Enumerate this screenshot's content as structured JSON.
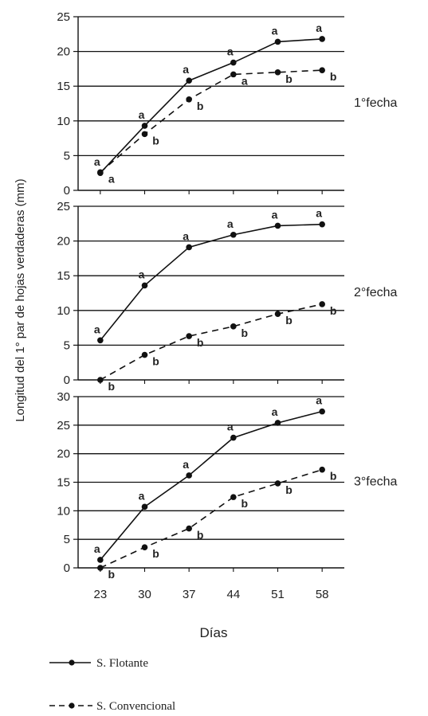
{
  "chart_data": {
    "type": "line",
    "ylabel": "Longitud del 1° par de hojas verdaderas (mm)",
    "xlabel": "Días",
    "x": [
      23,
      30,
      37,
      44,
      51,
      58
    ],
    "legend": {
      "placement": "bottom-left",
      "entries": [
        "S. Flotante",
        "S. Convencional"
      ]
    },
    "panels": [
      {
        "label": "1°fecha",
        "ylim": [
          0,
          25
        ],
        "yticks": [
          0,
          5,
          10,
          15,
          20,
          25
        ],
        "grid": true,
        "series": [
          {
            "name": "S. Flotante",
            "style": "solid",
            "values": [
              2.5,
              9.3,
              15.8,
              18.4,
              21.4,
              21.8
            ],
            "letters": [
              "a",
              "a",
              "a",
              "a",
              "a",
              "a"
            ]
          },
          {
            "name": "S. Convencional",
            "style": "dashed",
            "values": [
              2.6,
              8.1,
              13.1,
              16.7,
              17.0,
              17.3
            ],
            "letters": [
              "a",
              "b",
              "b",
              "a",
              "b",
              "b"
            ]
          }
        ]
      },
      {
        "label": "2°fecha",
        "ylim": [
          0,
          25
        ],
        "yticks": [
          0,
          5,
          10,
          15,
          20,
          25
        ],
        "grid": true,
        "series": [
          {
            "name": "S. Flotante",
            "style": "solid",
            "values": [
              5.7,
              13.6,
              19.1,
              20.9,
              22.2,
              22.4
            ],
            "letters": [
              "a",
              "a",
              "a",
              "a",
              "a",
              "a"
            ]
          },
          {
            "name": "S. Convencional",
            "style": "dashed",
            "values": [
              0.0,
              3.6,
              6.3,
              7.7,
              9.5,
              10.9
            ],
            "letters": [
              "b",
              "b",
              "b",
              "b",
              "b",
              "b"
            ]
          }
        ]
      },
      {
        "label": "3°fecha",
        "ylim": [
          0,
          30
        ],
        "yticks": [
          0,
          5,
          10,
          15,
          20,
          25,
          30
        ],
        "grid": true,
        "series": [
          {
            "name": "S. Flotante",
            "style": "solid",
            "values": [
              1.4,
              10.7,
              16.2,
              22.8,
              25.4,
              27.4
            ],
            "letters": [
              "a",
              "a",
              "a",
              "a",
              "a",
              "a"
            ]
          },
          {
            "name": "S. Convencional",
            "style": "dashed",
            "values": [
              0.0,
              3.6,
              6.9,
              12.4,
              14.8,
              17.2
            ],
            "letters": [
              "b",
              "b",
              "b",
              "b",
              "b",
              "b"
            ]
          }
        ]
      }
    ]
  }
}
